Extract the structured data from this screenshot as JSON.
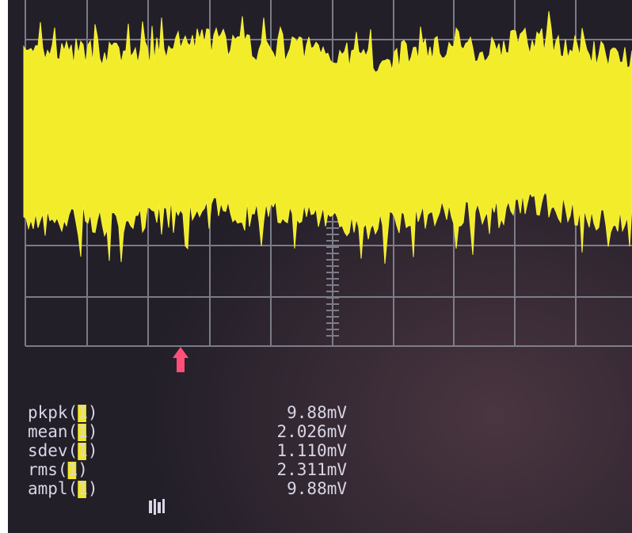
{
  "measurements": [
    {
      "label": "pkpk(1)",
      "value": "9.88mV"
    },
    {
      "label": "mean(1)",
      "value": "2.026mV"
    },
    {
      "label": "sdev(1)",
      "value": "1.110mV"
    },
    {
      "label": "rms(1)",
      "value": "2.311mV"
    },
    {
      "label": "ampl(1)",
      "value": "9.88mV"
    }
  ]
}
